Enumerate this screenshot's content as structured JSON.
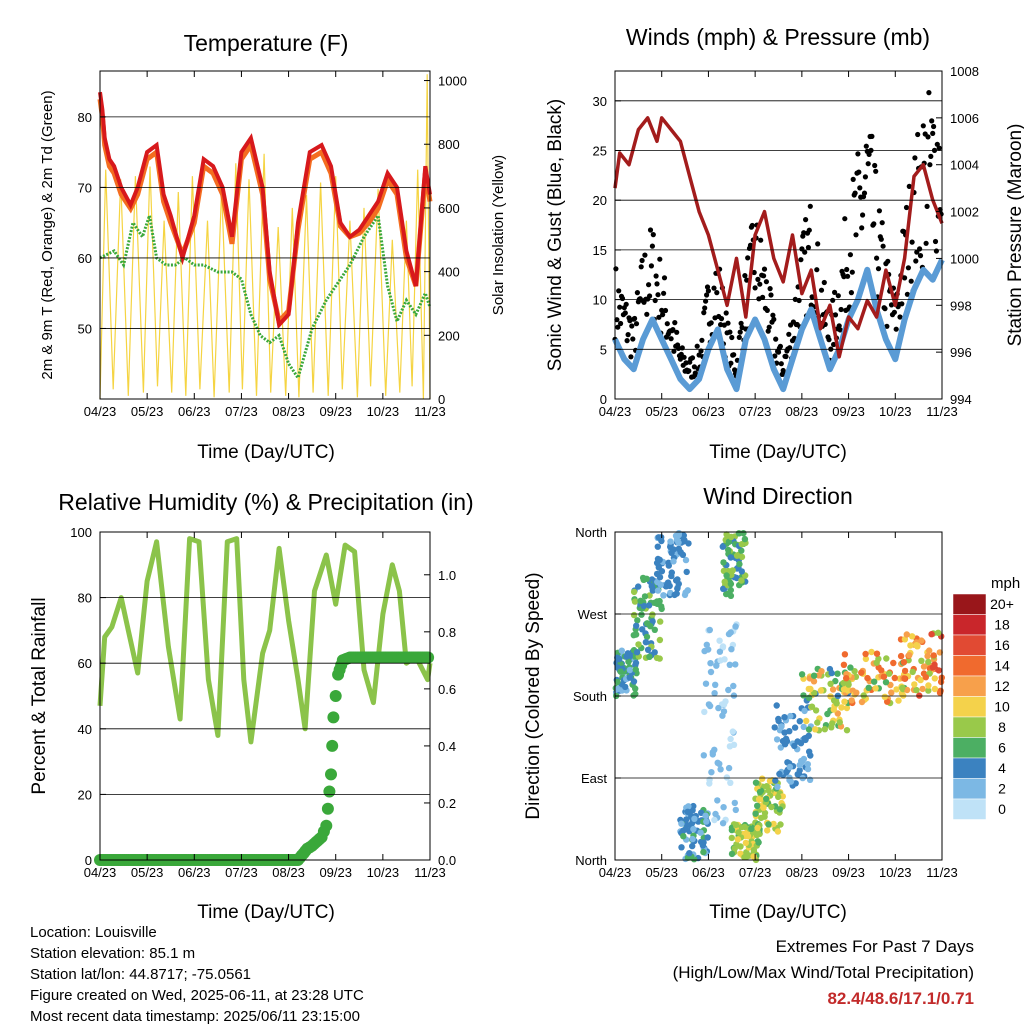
{
  "charts": {
    "temperature": {
      "title": "Temperature (F)",
      "ylabel": "2m & 9m T (Red, Orange) & 2m Td (Green)",
      "y2label": "Solar Insolation (Yellow)",
      "xlabel": "Time (Day/UTC)"
    },
    "winds": {
      "title": "Winds (mph) & Pressure (mb)",
      "ylabel": "Sonic Wind & Gust (Blue, Black)",
      "y2label": "Station Pressure (Maroon)",
      "xlabel": "Time (Day/UTC)"
    },
    "humidity": {
      "title": "Relative Humidity (%) & Precipitation (in)",
      "ylabel": "Percent & Total Rainfall",
      "xlabel": "Time (Day/UTC)"
    },
    "direction": {
      "title": "Wind Direction",
      "ylabel": "Direction (Colored By Speed)",
      "xlabel": "Time (Day/UTC)",
      "colorbar_title": "mph"
    }
  },
  "footer": {
    "location": "Location: Louisville",
    "elevation": "Station elevation: 85.1 m",
    "latlon": "Station lat/lon: 44.8717; -75.0561",
    "created": "Figure created on Wed, 2025-06-11, at 23:28 UTC",
    "recent": "Most recent data timestamp: 2025/06/11 23:15:00",
    "extremes_title": "Extremes For Past 7 Days",
    "extremes_sub": "(High/Low/Max Wind/Total Precipitation)",
    "extremes_values": "82.4/48.6/17.1/0.71"
  },
  "chart_data": [
    {
      "id": "temperature",
      "type": "line",
      "x_ticks": [
        "04/23",
        "05/23",
        "06/23",
        "07/23",
        "08/23",
        "09/23",
        "10/23",
        "11/23"
      ],
      "y_ticks": [
        50,
        60,
        70,
        80
      ],
      "ylim": [
        40,
        86.5
      ],
      "y2_ticks": [
        0,
        200,
        400,
        600,
        800,
        1000
      ],
      "y2lim": [
        0,
        1030
      ],
      "colors": {
        "t2m": "#d7191c",
        "t9m": "#f46d20",
        "td": "#3aa83a",
        "solar": "#f5d442"
      },
      "series": [
        {
          "key": "t2m",
          "x": [
            0,
            0.05,
            0.1,
            0.2,
            0.3,
            0.45,
            0.65,
            0.8,
            1.0,
            1.2,
            1.35,
            1.5,
            1.75,
            2.0,
            2.2,
            2.4,
            2.6,
            2.8,
            3.0,
            3.2,
            3.45,
            3.6,
            3.8,
            4.0,
            4.2,
            4.45,
            4.7,
            4.9,
            5.1,
            5.3,
            5.5,
            5.7,
            5.9,
            6.1,
            6.3,
            6.5,
            6.7,
            6.9,
            7.0
          ],
          "values": [
            83.5,
            81,
            77,
            74,
            73,
            70,
            67.5,
            70,
            75,
            76,
            69,
            66,
            60,
            66,
            74,
            73,
            70,
            63,
            75,
            77,
            70,
            58,
            50.5,
            52,
            65,
            75,
            76,
            73,
            65,
            63,
            64,
            66,
            68,
            72,
            70,
            61,
            56,
            73,
            69
          ]
        },
        {
          "key": "t9m",
          "x": [
            0,
            0.05,
            0.1,
            0.2,
            0.3,
            0.45,
            0.65,
            0.8,
            1.0,
            1.2,
            1.35,
            1.5,
            1.75,
            2.0,
            2.2,
            2.4,
            2.6,
            2.8,
            3.0,
            3.2,
            3.45,
            3.6,
            3.8,
            4.0,
            4.2,
            4.45,
            4.7,
            4.9,
            5.1,
            5.3,
            5.5,
            5.7,
            5.9,
            6.1,
            6.3,
            6.5,
            6.7,
            6.9,
            7.0
          ],
          "values": [
            82.5,
            80,
            76,
            73,
            72,
            69,
            67,
            69,
            74,
            75,
            68,
            65,
            60.5,
            65,
            73,
            72,
            69,
            62,
            74,
            76,
            69,
            57,
            51,
            52.5,
            64,
            74,
            75,
            72,
            64.5,
            63,
            63.5,
            65,
            67,
            71,
            69,
            60,
            56,
            72,
            68
          ]
        },
        {
          "key": "td",
          "x": [
            0,
            0.3,
            0.5,
            0.7,
            0.9,
            1.05,
            1.2,
            1.4,
            1.6,
            1.8,
            2.0,
            2.2,
            2.5,
            2.8,
            3.0,
            3.2,
            3.4,
            3.6,
            3.8,
            4.0,
            4.2,
            4.5,
            4.8,
            5.0,
            5.3,
            5.6,
            5.9,
            6.1,
            6.3,
            6.5,
            6.7,
            6.9,
            7.0
          ],
          "values": [
            60,
            61,
            59,
            65,
            63,
            66,
            60,
            59,
            59,
            60,
            59,
            59,
            58,
            58,
            57,
            52,
            49,
            48,
            49,
            45,
            43,
            50,
            54,
            56,
            59,
            63,
            66,
            56,
            51,
            54,
            52,
            55,
            53
          ]
        },
        {
          "key": "solar",
          "x": [
            0,
            0.12,
            0.28,
            0.44,
            0.6,
            0.75,
            0.92,
            1.06,
            1.22,
            1.36,
            1.52,
            1.66,
            1.82,
            1.96,
            2.12,
            2.28,
            2.42,
            2.58,
            2.74,
            2.88,
            3.02,
            3.16,
            3.32,
            3.48,
            3.62,
            3.78,
            3.94,
            4.08,
            4.22,
            4.38,
            4.52,
            4.68,
            4.84,
            5.0,
            5.14,
            5.3,
            5.46,
            5.6,
            5.74,
            5.9,
            6.06,
            6.2,
            6.36,
            6.5,
            6.62,
            6.74,
            6.86,
            6.94,
            7.0
          ],
          "values": [
            0,
            720,
            30,
            690,
            10,
            700,
            20,
            730,
            40,
            560,
            20,
            650,
            10,
            700,
            30,
            560,
            5,
            660,
            20,
            740,
            30,
            690,
            10,
            770,
            20,
            540,
            10,
            600,
            5,
            640,
            20,
            680,
            10,
            700,
            30,
            560,
            5,
            600,
            40,
            660,
            10,
            500,
            20,
            560,
            40,
            720,
            0,
            1020,
            0
          ]
        }
      ]
    },
    {
      "id": "winds",
      "type": "line",
      "x_ticks": [
        "04/23",
        "05/23",
        "06/23",
        "07/23",
        "08/23",
        "09/23",
        "10/23",
        "11/23"
      ],
      "y_ticks": [
        0,
        5,
        10,
        15,
        20,
        25,
        30
      ],
      "ylim": [
        0,
        33
      ],
      "y2_ticks": [
        994,
        996,
        998,
        1000,
        1002,
        1004,
        1006,
        1008
      ],
      "y2lim": [
        994,
        1008
      ],
      "colors": {
        "wind": "#5a9bd5",
        "gust": "#000000",
        "pressure": "#a31c1c"
      },
      "series": [
        {
          "key": "wind",
          "x": [
            0,
            0.2,
            0.4,
            0.6,
            0.8,
            1.0,
            1.2,
            1.4,
            1.6,
            1.8,
            2.0,
            2.2,
            2.4,
            2.6,
            2.8,
            3.0,
            3.2,
            3.4,
            3.6,
            3.8,
            4.0,
            4.2,
            4.4,
            4.6,
            4.8,
            5.0,
            5.2,
            5.4,
            5.6,
            5.8,
            6.0,
            6.2,
            6.4,
            6.6,
            6.8,
            7.0
          ],
          "values": [
            6,
            4,
            3,
            6,
            8,
            6,
            4,
            2,
            1,
            2,
            5,
            7,
            3,
            1,
            6,
            8,
            6,
            3,
            1,
            4,
            7,
            9,
            6,
            3,
            5,
            8,
            10,
            13,
            9,
            6,
            4,
            8,
            11,
            13,
            12,
            14
          ]
        },
        {
          "key": "gust",
          "x": [
            0,
            0.2,
            0.4,
            0.6,
            0.8,
            1.0,
            1.2,
            1.4,
            1.6,
            1.8,
            2.0,
            2.2,
            2.4,
            2.6,
            2.8,
            3.0,
            3.2,
            3.4,
            3.6,
            3.8,
            4.0,
            4.2,
            4.4,
            4.6,
            4.8,
            5.0,
            5.2,
            5.4,
            5.6,
            5.8,
            6.0,
            6.2,
            6.4,
            6.6,
            6.8,
            7.0
          ],
          "values": [
            10,
            8,
            6,
            11,
            13,
            10,
            7,
            4,
            3,
            4,
            9,
            11,
            6,
            3,
            10,
            14,
            11,
            6,
            3,
            7,
            12,
            15,
            10,
            6,
            10,
            15,
            18,
            22,
            16,
            11,
            8,
            14,
            18,
            22,
            23,
            24
          ]
        },
        {
          "key": "pressure",
          "x": [
            0,
            0.1,
            0.3,
            0.5,
            0.7,
            0.9,
            1.0,
            1.2,
            1.4,
            1.6,
            1.8,
            2.0,
            2.2,
            2.4,
            2.6,
            2.8,
            3.0,
            3.2,
            3.4,
            3.6,
            3.8,
            4.0,
            4.2,
            4.4,
            4.6,
            4.8,
            5.0,
            5.2,
            5.4,
            5.6,
            5.8,
            6.0,
            6.2,
            6.4,
            6.6,
            6.8,
            7.0
          ],
          "values": [
            1003,
            1004.5,
            1004,
            1005.5,
            1006,
            1005,
            1006,
            1005.5,
            1005,
            1003.5,
            1002,
            1001,
            999.5,
            998,
            1000,
            997.5,
            1001,
            1002,
            1000,
            999,
            1001,
            998.5,
            999.5,
            997,
            998,
            995.8,
            997.5,
            997,
            998.2,
            997.5,
            999.5,
            998,
            1000,
            1003.5,
            1004,
            1002.5,
            1001.5
          ]
        }
      ]
    },
    {
      "id": "humidity",
      "type": "line",
      "x_ticks": [
        "04/23",
        "05/23",
        "06/23",
        "07/23",
        "08/23",
        "09/23",
        "10/23",
        "11/23"
      ],
      "y_ticks": [
        0,
        20,
        40,
        60,
        80,
        100
      ],
      "ylim": [
        0,
        100
      ],
      "y2_ticks": [
        "0.0",
        "0.2",
        "0.4",
        "0.6",
        "0.8",
        "1.0"
      ],
      "y2lim": [
        0,
        1.15
      ],
      "colors": {
        "rh": "#8bc34a",
        "rain": "#3aa83a"
      },
      "series": [
        {
          "key": "rh",
          "x": [
            0,
            0.1,
            0.25,
            0.45,
            0.6,
            0.8,
            1.0,
            1.2,
            1.45,
            1.7,
            1.9,
            2.1,
            2.3,
            2.5,
            2.7,
            2.9,
            3.05,
            3.2,
            3.45,
            3.6,
            3.8,
            4.0,
            4.2,
            4.35,
            4.55,
            4.8,
            5.0,
            5.2,
            5.4,
            5.6,
            5.8,
            6.0,
            6.2,
            6.35,
            6.5,
            6.7,
            6.95,
            7.0
          ],
          "values": [
            47,
            68,
            71,
            80,
            70,
            57,
            85,
            97,
            65,
            43,
            98,
            97,
            55,
            38,
            97,
            98,
            55,
            36,
            63,
            70,
            95,
            73,
            55,
            40,
            82,
            93,
            78,
            96,
            94,
            58,
            48,
            75,
            90,
            82,
            60,
            62,
            55,
            60
          ]
        },
        {
          "key": "rain",
          "x": [
            0,
            1,
            2,
            3,
            4.2,
            4.4,
            4.5,
            4.7,
            4.8,
            4.9,
            4.95,
            5.05,
            5.15,
            5.3,
            7.0
          ],
          "values": [
            0,
            0,
            0,
            0,
            0,
            0.04,
            0.05,
            0.08,
            0.12,
            0.3,
            0.5,
            0.65,
            0.7,
            0.71,
            0.71
          ]
        }
      ]
    },
    {
      "id": "direction",
      "type": "scatter",
      "x_ticks": [
        "04/23",
        "05/23",
        "06/23",
        "07/23",
        "08/23",
        "09/23",
        "10/23",
        "11/23"
      ],
      "y_tick_labels": [
        "North",
        "East",
        "South",
        "West",
        "North"
      ],
      "y_tick_values": [
        0,
        90,
        180,
        270,
        360
      ],
      "ylim": [
        0,
        360
      ],
      "colorbar": {
        "labels": [
          "20+",
          "18",
          "16",
          "14",
          "12",
          "10",
          "8",
          "6",
          "4",
          "2",
          "0"
        ],
        "colors": [
          "#99161a",
          "#c9262b",
          "#e14a33",
          "#f06a2e",
          "#f7a04b",
          "#f4d24b",
          "#99c94a",
          "#4caf63",
          "#3b82c0",
          "#7cb8e4",
          "#bfe2f7"
        ]
      },
      "clusters": [
        {
          "x_range": [
            0.0,
            0.5
          ],
          "dir_range": [
            180,
            230
          ],
          "speed": [
            2,
            6
          ]
        },
        {
          "x_range": [
            0.4,
            1.0
          ],
          "dir_range": [
            220,
            310
          ],
          "speed": [
            3,
            8
          ]
        },
        {
          "x_range": [
            0.9,
            1.6
          ],
          "dir_range": [
            290,
            360
          ],
          "speed": [
            2,
            5
          ]
        },
        {
          "x_range": [
            1.4,
            2.0
          ],
          "dir_range": [
            0,
            60
          ],
          "speed": [
            2,
            6
          ]
        },
        {
          "x_range": [
            1.9,
            2.6
          ],
          "dir_range": [
            40,
            260
          ],
          "speed": [
            0,
            3
          ]
        },
        {
          "x_range": [
            2.3,
            2.8
          ],
          "dir_range": [
            290,
            360
          ],
          "speed": [
            4,
            9
          ]
        },
        {
          "x_range": [
            2.5,
            3.1
          ],
          "dir_range": [
            0,
            40
          ],
          "speed": [
            6,
            10
          ]
        },
        {
          "x_range": [
            3.0,
            3.6
          ],
          "dir_range": [
            30,
            90
          ],
          "speed": [
            6,
            11
          ]
        },
        {
          "x_range": [
            3.4,
            4.2
          ],
          "dir_range": [
            80,
            170
          ],
          "speed": [
            2,
            5
          ]
        },
        {
          "x_range": [
            4.0,
            5.0
          ],
          "dir_range": [
            140,
            210
          ],
          "speed": [
            4,
            12
          ]
        },
        {
          "x_range": [
            4.9,
            6.2
          ],
          "dir_range": [
            170,
            230
          ],
          "speed": [
            6,
            15
          ]
        },
        {
          "x_range": [
            6.1,
            7.0
          ],
          "dir_range": [
            180,
            250
          ],
          "speed": [
            8,
            16
          ]
        }
      ]
    }
  ]
}
